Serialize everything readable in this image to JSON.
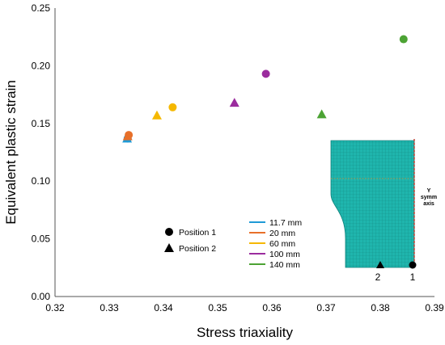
{
  "chart_data": {
    "type": "scatter",
    "title": "",
    "xlabel": "Stress triaxiality",
    "ylabel": "Equivalent plastic strain",
    "xlim": [
      0.32,
      0.39
    ],
    "ylim": [
      0.0,
      0.25
    ],
    "xticks": [
      "0.32",
      "0.33",
      "0.34",
      "0.35",
      "0.36",
      "0.37",
      "0.38",
      "0.39"
    ],
    "yticks": [
      "0.00",
      "0.05",
      "0.10",
      "0.15",
      "0.20",
      "0.25"
    ],
    "grid": false,
    "marker_legend": [
      {
        "marker": "circle",
        "label": "Position 1"
      },
      {
        "marker": "triangle",
        "label": "Position 2"
      }
    ],
    "series": [
      {
        "name": "11.7 mm",
        "color": "#1f9ad6",
        "position1": [
          0.3334,
          0.137
        ],
        "position2": [
          0.3333,
          0.137
        ]
      },
      {
        "name": "20 mm",
        "color": "#e8702a",
        "position1": [
          0.3336,
          0.14
        ],
        "position2": [
          0.3334,
          0.139
        ]
      },
      {
        "name": "60 mm",
        "color": "#f5b800",
        "position1": [
          0.3417,
          0.164
        ],
        "position2": [
          0.3388,
          0.157
        ]
      },
      {
        "name": "100 mm",
        "color": "#9b2c9e",
        "position1": [
          0.3589,
          0.193
        ],
        "position2": [
          0.3531,
          0.168
        ]
      },
      {
        "name": "140 mm",
        "color": "#4ca334",
        "position1": [
          0.3843,
          0.223
        ],
        "position2": [
          0.3692,
          0.158
        ]
      }
    ],
    "inset": {
      "axis_label_lines": [
        "Y",
        "symm",
        "axis"
      ],
      "point_labels": [
        "2",
        "1"
      ]
    }
  }
}
